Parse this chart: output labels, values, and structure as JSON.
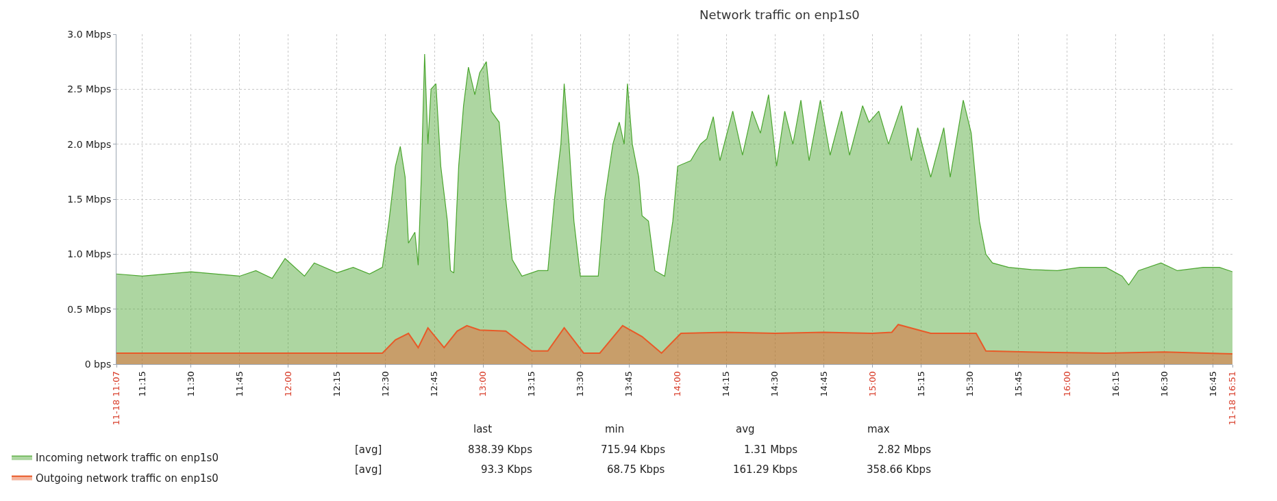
{
  "chart_data": {
    "type": "area",
    "title": "Network traffic on enp1s0",
    "xlim": [
      11.117,
      16.85
    ],
    "xticks": [
      {
        "value": 11.117,
        "label": "11-18 11:07"
      },
      {
        "value": 11.25,
        "label": "11:15"
      },
      {
        "value": 11.5,
        "label": "11:30"
      },
      {
        "value": 11.75,
        "label": "11:45"
      },
      {
        "value": 12,
        "label": "12:00"
      },
      {
        "value": 12.25,
        "label": "12:15"
      },
      {
        "value": 12.5,
        "label": "12:30"
      },
      {
        "value": 12.75,
        "label": "12:45"
      },
      {
        "value": 13,
        "label": "13:00"
      },
      {
        "value": 13.25,
        "label": "13:15"
      },
      {
        "value": 13.5,
        "label": "13:30"
      },
      {
        "value": 13.75,
        "label": "13:45"
      },
      {
        "value": 14,
        "label": "14:00"
      },
      {
        "value": 14.25,
        "label": "14:15"
      },
      {
        "value": 14.5,
        "label": "14:30"
      },
      {
        "value": 14.75,
        "label": "14:45"
      },
      {
        "value": 15,
        "label": "15:00"
      },
      {
        "value": 15.25,
        "label": "15:15"
      },
      {
        "value": 15.5,
        "label": "15:30"
      },
      {
        "value": 15.75,
        "label": "15:45"
      },
      {
        "value": 16,
        "label": "16:00"
      },
      {
        "value": 16.25,
        "label": "16:15"
      },
      {
        "value": 16.5,
        "label": "16:30"
      },
      {
        "value": 16.75,
        "label": "16:45"
      },
      {
        "value": 16.85,
        "label": "11-18 16:51"
      }
    ],
    "ylim": [
      0,
      3.0
    ],
    "yticks": [
      {
        "value": 0,
        "label": "0 bps"
      },
      {
        "value": 0.5,
        "label": "0.5 Mbps"
      },
      {
        "value": 1.0,
        "label": "1.0 Mbps"
      },
      {
        "value": 1.5,
        "label": "1.5 Mbps"
      },
      {
        "value": 2.0,
        "label": "2.0 Mbps"
      },
      {
        "value": 2.5,
        "label": "2.5 Mbps"
      },
      {
        "value": 3.0,
        "label": "3.0 Mbps"
      }
    ],
    "grid": true,
    "legend": "bottom left",
    "marker": "none",
    "line_style": "solid",
    "series": [
      {
        "name": "Incoming network traffic on enp1s0",
        "color": "#4aa52e",
        "x": [
          11.117,
          11.25,
          11.5,
          11.75,
          11.833,
          11.917,
          11.983,
          12.083,
          12.133,
          12.25,
          12.333,
          12.417,
          12.483,
          12.517,
          12.55,
          12.575,
          12.6,
          12.617,
          12.65,
          12.667,
          12.683,
          12.7,
          12.717,
          12.733,
          12.758,
          12.783,
          12.817,
          12.833,
          12.85,
          12.875,
          12.9,
          12.925,
          12.958,
          12.983,
          13.017,
          13.042,
          13.083,
          13.117,
          13.15,
          13.2,
          13.283,
          13.333,
          13.367,
          13.4,
          13.417,
          13.442,
          13.467,
          13.5,
          13.592,
          13.625,
          13.667,
          13.7,
          13.725,
          13.742,
          13.767,
          13.8,
          13.817,
          13.85,
          13.883,
          13.933,
          13.975,
          14.0,
          14.067,
          14.117,
          14.15,
          14.183,
          14.217,
          14.283,
          14.333,
          14.383,
          14.425,
          14.467,
          14.508,
          14.55,
          14.592,
          14.633,
          14.675,
          14.733,
          14.783,
          14.842,
          14.883,
          14.95,
          14.983,
          15.033,
          15.083,
          15.15,
          15.2,
          15.233,
          15.3,
          15.367,
          15.4,
          15.467,
          15.508,
          15.55,
          15.583,
          15.617,
          15.7,
          15.817,
          15.95,
          16.067,
          16.2,
          16.283,
          16.317,
          16.367,
          16.483,
          16.567,
          16.7,
          16.783,
          16.85
        ],
        "values": [
          0.82,
          0.8,
          0.84,
          0.8,
          0.85,
          0.78,
          0.96,
          0.8,
          0.92,
          0.83,
          0.88,
          0.82,
          0.88,
          1.3,
          1.8,
          1.98,
          1.7,
          1.1,
          1.2,
          0.9,
          1.7,
          2.82,
          2.0,
          2.5,
          2.55,
          1.8,
          1.3,
          0.85,
          0.83,
          1.8,
          2.35,
          2.7,
          2.45,
          2.65,
          2.75,
          2.3,
          2.2,
          1.5,
          0.95,
          0.8,
          0.85,
          0.85,
          1.5,
          2.0,
          2.55,
          2.0,
          1.3,
          0.8,
          0.8,
          1.5,
          2.0,
          2.2,
          2.0,
          2.55,
          2.0,
          1.7,
          1.35,
          1.3,
          0.85,
          0.8,
          1.3,
          1.8,
          1.85,
          2.0,
          2.05,
          2.25,
          1.85,
          2.3,
          1.9,
          2.3,
          2.1,
          2.45,
          1.8,
          2.3,
          2.0,
          2.4,
          1.85,
          2.4,
          1.9,
          2.3,
          1.9,
          2.35,
          2.2,
          2.3,
          2.0,
          2.35,
          1.85,
          2.15,
          1.7,
          2.15,
          1.7,
          2.4,
          2.1,
          1.3,
          1.0,
          0.92,
          0.88,
          0.86,
          0.85,
          0.88,
          0.88,
          0.8,
          0.72,
          0.85,
          0.92,
          0.85,
          0.88,
          0.88,
          0.84
        ]
      },
      {
        "name": "Outgoing network traffic on enp1s0",
        "color": "#e85a28",
        "x": [
          11.117,
          11.5,
          12.0,
          12.483,
          12.55,
          12.617,
          12.667,
          12.717,
          12.8,
          12.867,
          12.917,
          12.983,
          13.117,
          13.25,
          13.333,
          13.417,
          13.517,
          13.6,
          13.717,
          13.817,
          13.917,
          14.017,
          14.25,
          14.5,
          14.75,
          15.0,
          15.1,
          15.133,
          15.3,
          15.533,
          15.583,
          15.8,
          16.2,
          16.5,
          16.85
        ],
        "values": [
          0.1,
          0.1,
          0.1,
          0.1,
          0.22,
          0.28,
          0.15,
          0.33,
          0.15,
          0.3,
          0.35,
          0.31,
          0.3,
          0.12,
          0.12,
          0.33,
          0.1,
          0.1,
          0.35,
          0.25,
          0.1,
          0.28,
          0.29,
          0.28,
          0.29,
          0.28,
          0.29,
          0.36,
          0.28,
          0.28,
          0.12,
          0.11,
          0.1,
          0.11,
          0.093
        ]
      }
    ],
    "annotations": [
      "last",
      "min",
      "avg",
      "max",
      "[avg]",
      "838.39 Kbps",
      "715.94 Kbps",
      "1.31 Mbps",
      "2.82 Mbps",
      "[avg]",
      "93.3 Kbps",
      "68.75 Kbps",
      "161.29 Kbps",
      "358.66 Kbps"
    ]
  }
}
